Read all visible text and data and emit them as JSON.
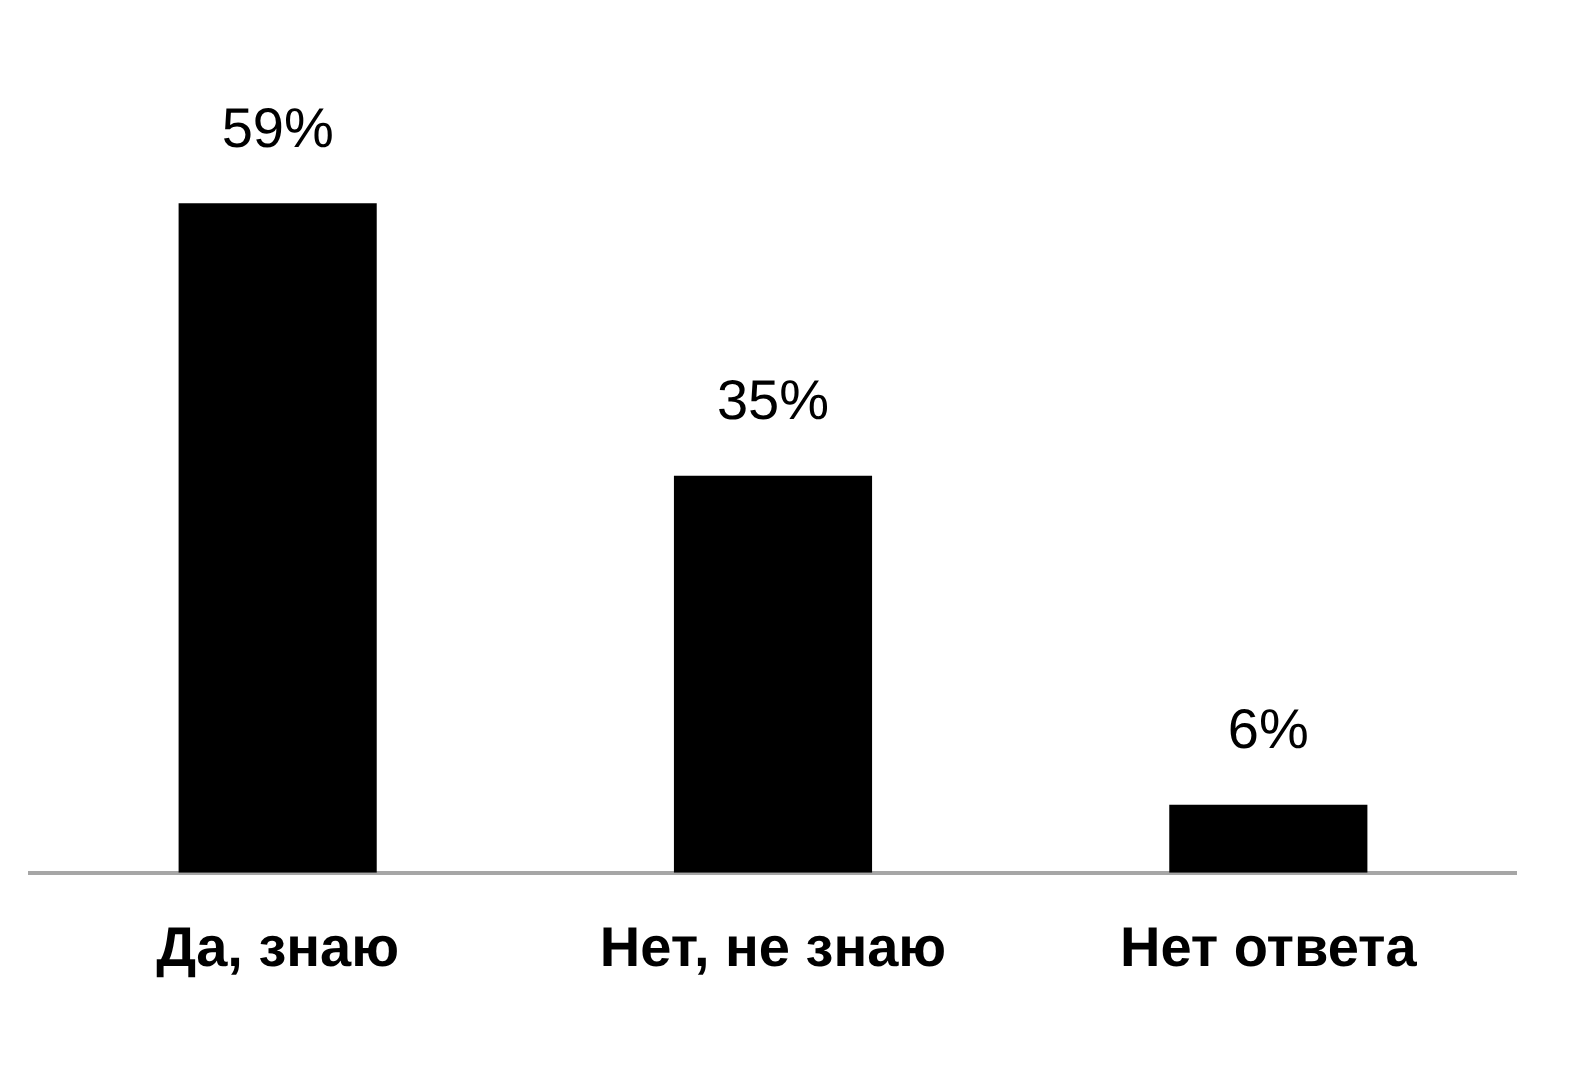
{
  "chart_data": {
    "type": "bar",
    "categories": [
      "Да, знаю",
      "Нет, не знаю",
      "Нет ответа"
    ],
    "values": [
      59,
      35,
      6
    ],
    "value_labels": [
      "59%",
      "35%",
      "6%"
    ],
    "color": "#000000",
    "tick_labels": "x"
  }
}
